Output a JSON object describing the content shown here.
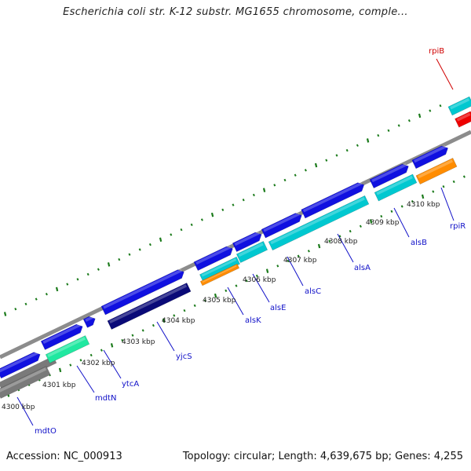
{
  "title": "Escherichia coli str. K-12 substr. MG1655 chromosome, comple...",
  "footer": {
    "accession": "Accession: NC_000913",
    "summary": "Topology: circular; Length: 4,639,675 bp; Genes: 4,255"
  },
  "colors": {
    "forward_cds": "#1010e0",
    "reverse_cds": "#00c8d0",
    "dark_cds": "#0a0a78",
    "green_cds": "#20e8a0",
    "orange_cds": "#ff8c00",
    "red_cds": "#ee0000",
    "backbone": "#8c8c8c",
    "tick": "#1a7a1a",
    "label_blue": "#1010c8",
    "label_red": "#d00000"
  },
  "kbp_ticks": [
    "4300 kbp",
    "4301 kbp",
    "4302 kbp",
    "4303 kbp",
    "4304 kbp",
    "4305 kbp",
    "4306 kbp",
    "4307 kbp",
    "4308 kbp",
    "4309 kbp",
    "4310 kbp"
  ],
  "gene_labels": [
    {
      "name": "mdtO",
      "color": "#1010c8"
    },
    {
      "name": "mdtN",
      "color": "#1010c8"
    },
    {
      "name": "ytcA",
      "color": "#1010c8"
    },
    {
      "name": "yjcS",
      "color": "#1010c8"
    },
    {
      "name": "alsK",
      "color": "#1010c8"
    },
    {
      "name": "alsE",
      "color": "#1010c8"
    },
    {
      "name": "alsC",
      "color": "#1010c8"
    },
    {
      "name": "alsA",
      "color": "#1010c8"
    },
    {
      "name": "alsB",
      "color": "#1010c8"
    },
    {
      "name": "rpiR",
      "color": "#1010c8"
    },
    {
      "name": "rpiB",
      "color": "#d00000"
    }
  ]
}
